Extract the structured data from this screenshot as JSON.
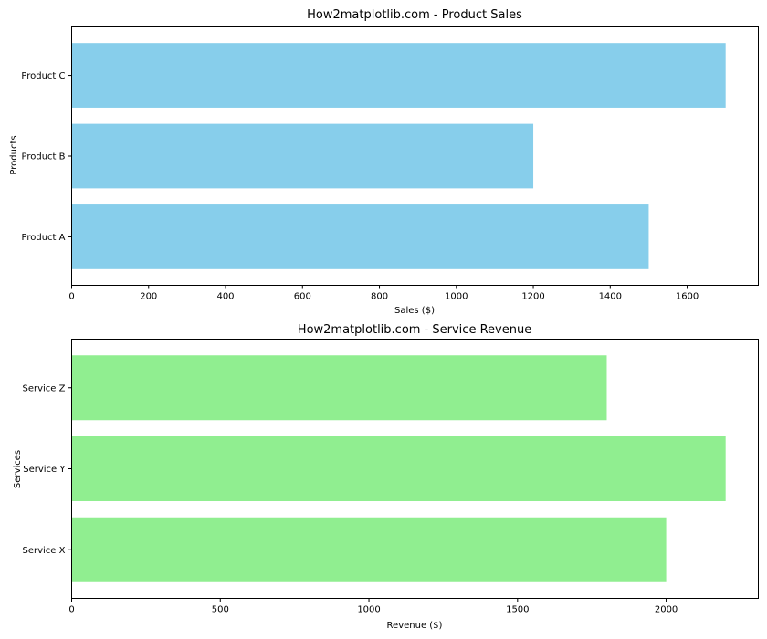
{
  "chart_data": [
    {
      "type": "bar",
      "orientation": "horizontal",
      "title": "How2matplotlib.com - Product Sales",
      "xlabel": "Sales ($)",
      "ylabel": "Products",
      "categories": [
        "Product A",
        "Product B",
        "Product C"
      ],
      "values": [
        1500,
        1200,
        1700
      ],
      "color": "#87CEEB",
      "xlim": [
        0,
        1785
      ],
      "xticks": [
        0,
        200,
        400,
        600,
        800,
        1000,
        1200,
        1400,
        1600
      ],
      "grid": false
    },
    {
      "type": "bar",
      "orientation": "horizontal",
      "title": "How2matplotlib.com - Service Revenue",
      "xlabel": "Revenue ($)",
      "ylabel": "Services",
      "categories": [
        "Service X",
        "Service Y",
        "Service Z"
      ],
      "values": [
        2000,
        2200,
        1800
      ],
      "color": "#90EE90",
      "xlim": [
        0,
        2310
      ],
      "xticks": [
        0,
        500,
        1000,
        1500,
        2000
      ],
      "grid": false
    }
  ]
}
